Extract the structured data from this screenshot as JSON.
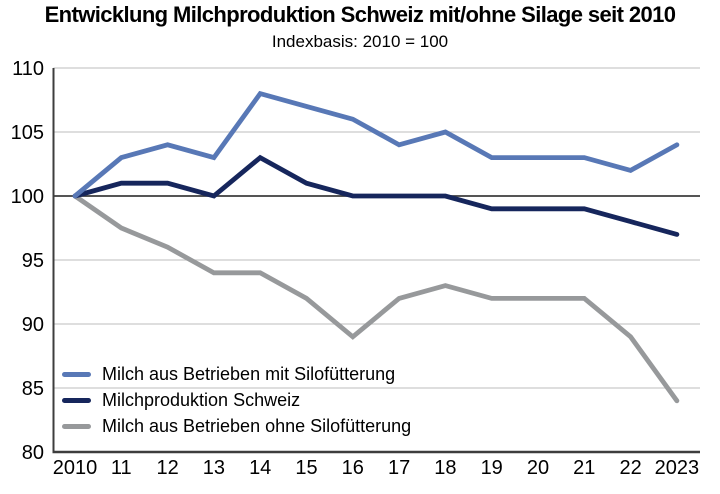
{
  "title": "Entwicklung Milchproduktion Schweiz mit/ohne Silage seit 2010",
  "subtitle": "Indexbasis: 2010 = 100",
  "colors": {
    "grid_light": "#c9c9c9",
    "axis_dark": "#3d3d3d",
    "text": "#000000",
    "background": "#ffffff"
  },
  "chart_data": {
    "type": "line",
    "title": "Entwicklung Milchproduktion Schweiz mit/ohne Silage seit 2010",
    "subtitle": "Indexbasis: 2010 = 100",
    "xlabel": "",
    "ylabel": "",
    "categories": [
      "2010",
      "11",
      "12",
      "13",
      "14",
      "15",
      "16",
      "17",
      "18",
      "19",
      "20",
      "21",
      "22",
      "2023"
    ],
    "yticks": [
      80,
      85,
      90,
      95,
      100,
      105,
      110
    ],
    "ylim": [
      80,
      110
    ],
    "baseline": 100,
    "grid": true,
    "legend_position": "bottom-left",
    "series": [
      {
        "name": "Milch aus Betrieben mit Silofütterung",
        "color": "#5878b6",
        "values": [
          100,
          103,
          104,
          103,
          108,
          107,
          106,
          104,
          105,
          103,
          103,
          103,
          102,
          104
        ]
      },
      {
        "name": "Milchproduktion Schweiz",
        "color": "#16265c",
        "values": [
          100,
          101,
          101,
          100,
          103,
          101,
          100,
          100,
          100,
          99,
          99,
          99,
          98,
          97
        ]
      },
      {
        "name": "Milch aus Betrieben ohne Silofütterung",
        "color": "#97999b",
        "values": [
          100,
          97.5,
          96,
          94,
          94,
          92,
          89,
          92,
          93,
          92,
          92,
          92,
          89,
          84
        ]
      }
    ]
  }
}
